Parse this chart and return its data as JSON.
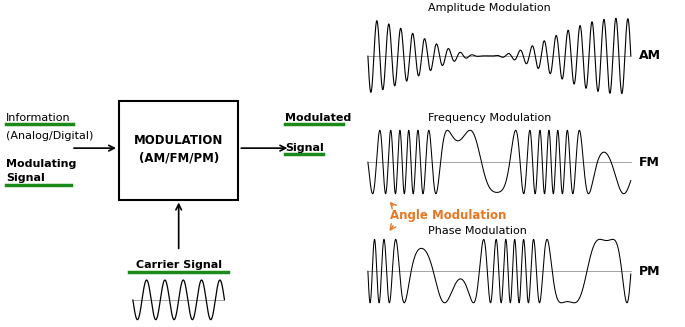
{
  "bg_color": "#ffffff",
  "box_text_line1": "MODULATION",
  "box_text_line2": "(AM/FM/PM)",
  "info_label_line1": "Information",
  "info_label_line2": "(Analog/Digital)",
  "mod_signal_line1": "Modulating",
  "mod_signal_line2": "Signal",
  "modulated_label_line1": "Modulated",
  "modulated_label_line2": "Signal",
  "carrier_label": "Carrier Signal",
  "green_color": "#1a8a1a",
  "orange_color": "#E87722",
  "am_title": "Amplitude Modulation",
  "fm_title": "Frequency Modulation",
  "pm_title": "Phase Modulation",
  "angle_label": "Angle Modulation",
  "am_label": "AM",
  "fm_label": "FM",
  "pm_label": "PM"
}
